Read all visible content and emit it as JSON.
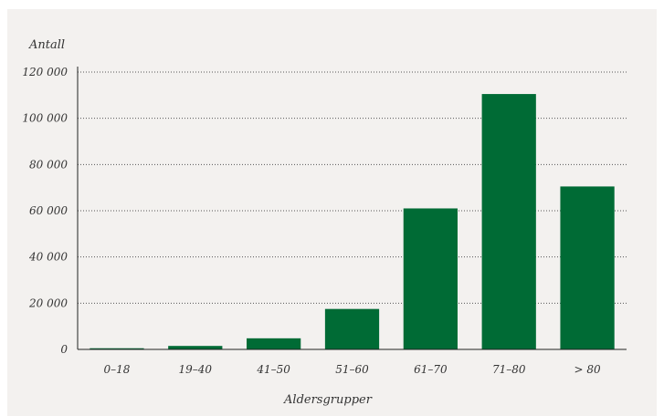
{
  "chart_data": {
    "type": "bar",
    "title": "",
    "ylabel": "Antall",
    "xlabel": "Aldersgrupper",
    "categories": [
      "0–18",
      "19–40",
      "41–50",
      "51–60",
      "61–70",
      "71–80",
      "> 80"
    ],
    "values": [
      500,
      1500,
      4800,
      17500,
      61000,
      110500,
      70500
    ],
    "ylim": [
      0,
      120000
    ],
    "yticks": [
      0,
      20000,
      40000,
      60000,
      80000,
      100000,
      120000
    ],
    "ytick_labels": [
      "0",
      "20 000",
      "40 000",
      "60 000",
      "80 000",
      "100 000",
      "120 000"
    ],
    "grid": "horizontal dotted",
    "colors": {
      "bar": "#006b35",
      "grid": "#555555",
      "axis": "#222222",
      "background": "#f3f1ef"
    }
  }
}
